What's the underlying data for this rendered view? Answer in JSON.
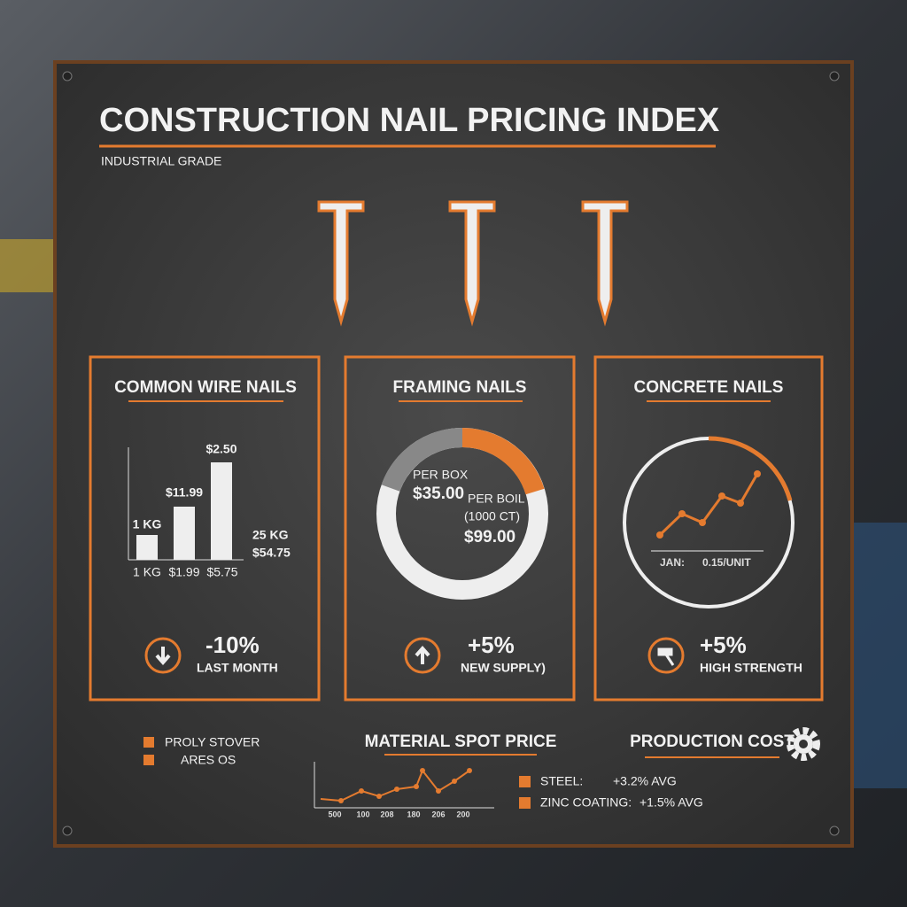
{
  "header": {
    "title": "CONSTRUCTION NAIL PRICING INDEX",
    "subtitle": "INDUSTRIAL GRADE"
  },
  "panels": [
    {
      "title": "COMMON WIRE NAILS",
      "bar_top_labels": [
        "1 KG",
        "$11.99",
        "$2.50"
      ],
      "bar_bottom_labels": [
        "1 KG",
        "$1.99",
        "$5.75"
      ],
      "side_labels": [
        "25 KG",
        "$54.75"
      ],
      "change": "-10%",
      "note": "LAST MONTH"
    },
    {
      "title": "FRAMING NAILS",
      "labels": [
        "PER BOX",
        "$35.00",
        "PER BOIL",
        "(1000 CT)",
        "$99.00"
      ],
      "change": "+5%",
      "note": "NEW SUPPLY)"
    },
    {
      "title": "CONCRETE NAILS",
      "axis_labels": [
        "JAN:",
        "0.15/UNIT"
      ],
      "change": "+5%",
      "note": "HIGH STRENGTH"
    }
  ],
  "footer": {
    "legend": [
      "PROLY STOVER",
      "ARES OS"
    ],
    "spot_title": "MATERIAL SPOT PRICE",
    "spot_x_labels": [
      "500",
      "100",
      "208",
      "180",
      "206",
      "200"
    ],
    "cost_title": "PRODUCTION COST",
    "costs": [
      {
        "name": "STEEL:",
        "value": "+3.2% AVG"
      },
      {
        "name": "ZINC COATING:",
        "value": "+1.5% AVG"
      }
    ]
  }
}
